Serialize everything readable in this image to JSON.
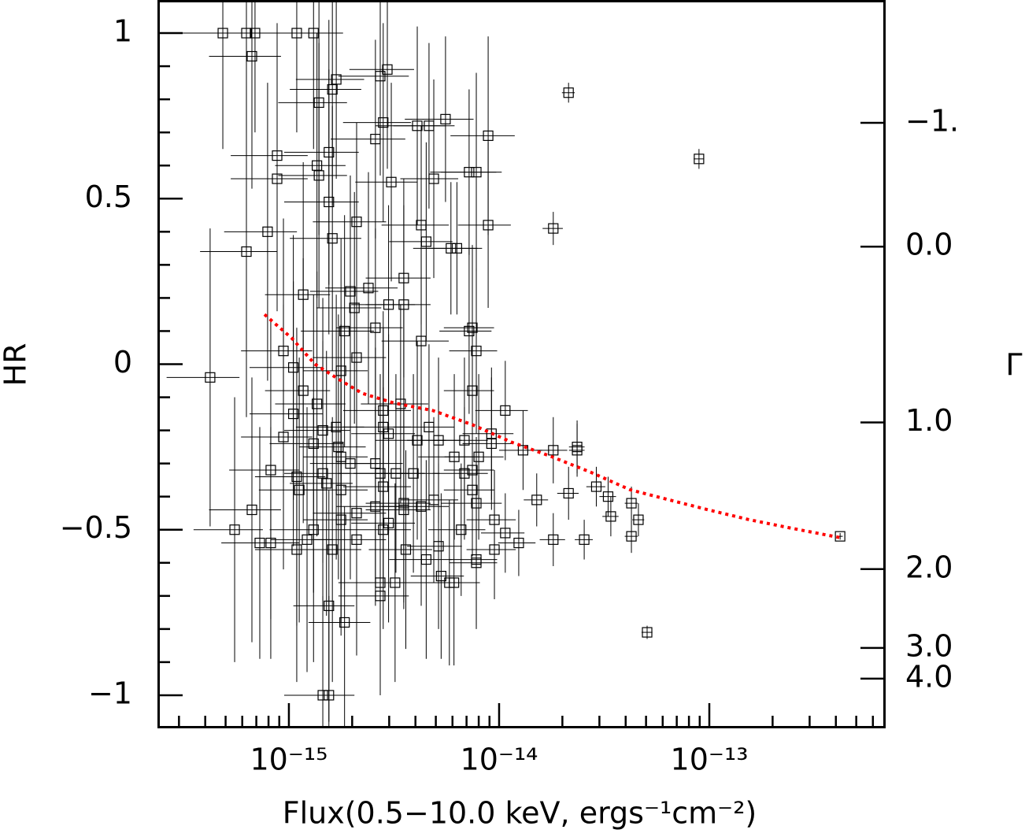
{
  "chart_data": {
    "type": "scatter",
    "x_label": "Flux(0.5−10.0 keV, ergs⁻¹cm⁻²)",
    "y_label": "HR",
    "y2_label": "Γ",
    "xscale": "log",
    "xlim": [
      2.37e-16,
      6.9e-13
    ],
    "xticks": [
      {
        "value": 1e-15,
        "label": "10⁻¹⁵"
      },
      {
        "value": 1e-14,
        "label": "10⁻¹⁴"
      },
      {
        "value": 1e-13,
        "label": "10⁻¹³"
      }
    ],
    "xminorticks": [
      3e-16,
      4e-16,
      5e-16,
      6e-16,
      7e-16,
      8e-16,
      9e-16,
      2e-15,
      3e-15,
      4e-15,
      5e-15,
      6e-15,
      7e-15,
      8e-15,
      9e-15,
      2e-14,
      3e-14,
      4e-14,
      5e-14,
      6e-14,
      7e-14,
      8e-14,
      9e-14,
      2e-13,
      3e-13,
      4e-13,
      5e-13,
      6e-13
    ],
    "ylim": [
      -1.1,
      1.1
    ],
    "yticks": [
      {
        "value": -1,
        "label": "−1"
      },
      {
        "value": -0.5,
        "label": "−0.5"
      },
      0,
      0.5,
      1
    ],
    "yminorticks": [
      -0.9,
      -0.8,
      -0.7,
      -0.6,
      -0.4,
      -0.3,
      -0.2,
      -0.1,
      0.1,
      0.2,
      0.3,
      0.4,
      0.6,
      0.7,
      0.8,
      0.9
    ],
    "y2ticks": [
      {
        "value": -1,
        "label": "−1.",
        "hr": 0.729
      },
      {
        "value": 0,
        "label": "0.0",
        "hr": 0.355
      },
      {
        "value": 1,
        "label": "1.0",
        "hr": -0.176
      },
      {
        "value": 2,
        "label": "2.0",
        "hr": -0.619
      },
      {
        "value": 3,
        "label": "3.0",
        "hr": -0.857
      },
      {
        "value": 4,
        "label": "4.0",
        "hr": -0.95
      }
    ],
    "series": [
      {
        "type": "scatter",
        "color": "#000000",
        "x": [
          4.85e-16,
          6.28e-16,
          6.9e-16,
          6.67e-16,
          1.09e-15,
          1.31e-15,
          1.39e-15,
          1.55e-15,
          1.61e-15,
          1.68e-15,
          2.72e-15,
          2.94e-15,
          2.81e-15,
          2.58e-15,
          4.08e-15,
          4.64e-15,
          5.56e-15,
          8.87e-15,
          2.14e-14,
          8.93e-14,
          8.79e-16,
          8.79e-16,
          1.36e-15,
          1.39e-15,
          1.55e-15,
          3.07e-15,
          4.89e-15,
          7.79e-15,
          7.2e-15,
          8.87e-15,
          1.81e-14,
          7.92e-16,
          6.28e-16,
          1.61e-15,
          2.1e-15,
          4.26e-15,
          4.5e-15,
          5.9e-15,
          6.3e-15,
          3.52e-15,
          2.39e-15,
          1.17e-15,
          1.96e-15,
          2.05e-15,
          2.98e-15,
          3.52e-15,
          2.58e-15,
          1.84e-15,
          7.2e-15,
          7.46e-15,
          7.79e-15,
          4.26e-15,
          9.42e-16,
          2.1e-15,
          4.22e-16,
          1.05e-15,
          1.77e-15,
          1.17e-15,
          1.36e-15,
          1.05e-15,
          7.46e-15,
          1.07e-14,
          2.81e-15,
          3.4e-15,
          9.42e-16,
          1.45e-15,
          1.68e-15,
          2.81e-15,
          2.98e-15,
          4.64e-15,
          4.08e-15,
          5.15e-15,
          6.84e-15,
          9.2e-15,
          9.2e-15,
          1.3e-14,
          1.81e-14,
          2.35e-14,
          2.35e-14,
          1.31e-15,
          1.72e-15,
          1.77e-15,
          1.96e-15,
          8.2e-16,
          1.09e-15,
          1.12e-15,
          1.45e-15,
          1.51e-15,
          1.77e-15,
          2.58e-15,
          2.72e-15,
          2.81e-15,
          3.23e-15,
          3.91e-15,
          6.12e-15,
          6.84e-15,
          7.46e-15,
          8e-15,
          7.46e-15,
          7.79e-15,
          3.52e-15,
          3.52e-15,
          4.26e-15,
          4.89e-15,
          1.51e-14,
          3.3e-14,
          2.14e-14,
          2.9e-14,
          4.26e-14,
          4.6e-14,
          3.4e-14,
          9.5e-15,
          1.07e-14,
          4.26e-14,
          1.24e-14,
          1.81e-14,
          2.54e-14,
          5.06e-14,
          4.19e-13,
          6.67e-16,
          5.52e-16,
          7.27e-16,
          8.2e-16,
          1.09e-15,
          1.22e-15,
          1.31e-15,
          1.61e-15,
          1.77e-15,
          2.1e-15,
          2.1e-15,
          2.58e-15,
          2.81e-15,
          2.98e-15,
          3.6e-15,
          4.5e-15,
          5.15e-15,
          5.3e-15,
          5.8e-15,
          6.1e-15,
          6.6e-15,
          7.79e-15,
          7.79e-15,
          9.5e-15,
          2.72e-15,
          3.2e-15,
          2.72e-15,
          1.55e-15,
          1.84e-15,
          1.45e-15,
          1.55e-15
        ],
        "values": [
          1,
          1,
          1,
          0.93,
          1,
          1,
          0.79,
          0.64,
          0.83,
          0.86,
          0.87,
          0.89,
          0.73,
          0.68,
          0.72,
          0.72,
          0.74,
          0.69,
          0.82,
          0.62,
          0.63,
          0.56,
          0.6,
          0.57,
          0.49,
          0.55,
          0.56,
          0.58,
          0.58,
          0.42,
          0.41,
          0.4,
          0.34,
          0.38,
          0.43,
          0.42,
          0.37,
          0.35,
          0.35,
          0.26,
          0.23,
          0.21,
          0.22,
          0.17,
          0.18,
          0.18,
          0.11,
          0.1,
          0.1,
          0.11,
          0.04,
          0.07,
          0.04,
          0.02,
          -0.04,
          -0.01,
          -0.02,
          -0.08,
          -0.12,
          -0.15,
          -0.08,
          -0.14,
          -0.14,
          -0.12,
          -0.22,
          -0.2,
          -0.19,
          -0.19,
          -0.21,
          -0.19,
          -0.23,
          -0.23,
          -0.23,
          -0.21,
          -0.24,
          -0.26,
          -0.26,
          -0.25,
          -0.26,
          -0.24,
          -0.25,
          -0.28,
          -0.3,
          -0.32,
          -0.34,
          -0.38,
          -0.33,
          -0.36,
          -0.38,
          -0.3,
          -0.33,
          -0.37,
          -0.33,
          -0.33,
          -0.28,
          -0.33,
          -0.32,
          -0.28,
          -0.38,
          -0.42,
          -0.42,
          -0.44,
          -0.43,
          -0.41,
          -0.41,
          -0.4,
          -0.39,
          -0.37,
          -0.42,
          -0.47,
          -0.46,
          -0.47,
          -0.51,
          -0.52,
          -0.54,
          -0.53,
          -0.53,
          -0.81,
          -0.52,
          -0.44,
          -0.5,
          -0.54,
          -0.54,
          -0.56,
          -0.53,
          -0.5,
          -0.56,
          -0.47,
          -0.45,
          -0.53,
          -0.43,
          -0.5,
          -0.48,
          -0.56,
          -0.59,
          -0.55,
          -0.64,
          -0.66,
          -0.66,
          -0.5,
          -0.59,
          -0.6,
          -0.56,
          -0.66,
          -0.66,
          -0.7,
          -0.73,
          -0.78,
          -1,
          -1
        ],
        "xerr": [
          2e-16,
          2.5e-16,
          2.5e-16,
          2.5e-16,
          4e-16,
          5e-16,
          5e-16,
          6e-16,
          6e-16,
          6e-16,
          1e-15,
          1e-15,
          1e-15,
          1e-15,
          1.5e-15,
          1.5e-15,
          2e-15,
          3e-15,
          1.5e-15,
          5e-15,
          3.5e-16,
          3.5e-16,
          5e-16,
          5e-16,
          6e-16,
          1e-15,
          1.5e-15,
          2.5e-15,
          2.5e-15,
          2.5e-15,
          2e-15,
          3e-16,
          2.5e-16,
          6e-16,
          8e-16,
          1.5e-15,
          1.5e-15,
          2e-15,
          2e-15,
          1.2e-15,
          9e-16,
          4e-16,
          7e-16,
          7e-16,
          1e-15,
          1.2e-15,
          9e-16,
          7e-16,
          2e-15,
          2e-15,
          2e-15,
          1.5e-15,
          3.5e-16,
          8e-16,
          1.6e-16,
          4e-16,
          6e-16,
          4e-16,
          5e-16,
          4e-16,
          2e-15,
          3e-15,
          1e-15,
          1.2e-15,
          3.5e-16,
          5e-16,
          6e-16,
          1e-15,
          1e-15,
          1.5e-15,
          1.5e-15,
          1.5e-15,
          2e-15,
          2.5e-15,
          2.5e-15,
          3e-15,
          3e-15,
          2e-15,
          2e-15,
          5e-16,
          6e-16,
          6e-16,
          7e-16,
          3e-16,
          4e-16,
          4e-16,
          5e-16,
          5e-16,
          6e-16,
          9e-16,
          1e-15,
          1e-15,
          1.2e-15,
          1.3e-15,
          2e-15,
          2e-15,
          2e-15,
          2.5e-15,
          2e-15,
          2.5e-15,
          1.2e-15,
          1.2e-15,
          1.5e-15,
          1.5e-15,
          2e-15,
          3e-15,
          2.5e-15,
          3e-15,
          3e-15,
          3e-15,
          3e-15,
          2.5e-15,
          2.5e-15,
          3e-15,
          2.5e-15,
          2.5e-15,
          2.5e-15,
          3e-15,
          1.2e-14,
          2.5e-16,
          2e-16,
          2.5e-16,
          3e-16,
          4e-16,
          4e-16,
          5e-16,
          6e-16,
          6e-16,
          8e-16,
          8e-16,
          9e-16,
          1e-15,
          1e-15,
          1.2e-15,
          1.5e-15,
          1.5e-15,
          1.5e-15,
          2e-15,
          2e-15,
          2e-15,
          2e-15,
          2e-15,
          2.5e-15,
          1e-15,
          1e-15,
          1e-15,
          5e-16,
          6e-16,
          5e-16,
          5e-16
        ],
        "yerr": [
          0.35,
          0.3,
          0.3,
          0.4,
          0.3,
          0.35,
          0.4,
          0.4,
          0.35,
          0.3,
          0.3,
          0.3,
          0.3,
          0.3,
          0.3,
          0.25,
          0.25,
          0.3,
          0.03,
          0.03,
          0.4,
          0.4,
          0.4,
          0.4,
          0.4,
          0.3,
          0.3,
          0.3,
          0.25,
          0.25,
          0.05,
          0.45,
          0.5,
          0.4,
          0.3,
          0.3,
          0.3,
          0.2,
          0.2,
          0.3,
          0.35,
          0.4,
          0.35,
          0.35,
          0.3,
          0.3,
          0.3,
          0.35,
          0.25,
          0.25,
          0.25,
          0.3,
          0.4,
          0.35,
          0.45,
          0.4,
          0.4,
          0.4,
          0.4,
          0.4,
          0.2,
          0.15,
          0.3,
          0.3,
          0.4,
          0.4,
          0.4,
          0.3,
          0.3,
          0.25,
          0.3,
          0.25,
          0.25,
          0.2,
          0.2,
          0.12,
          0.1,
          0.08,
          0.08,
          0.45,
          0.4,
          0.4,
          0.35,
          0.45,
          0.45,
          0.4,
          0.4,
          0.4,
          0.4,
          0.35,
          0.3,
          0.3,
          0.3,
          0.3,
          0.25,
          0.2,
          0.25,
          0.25,
          0.2,
          0.2,
          0.3,
          0.3,
          0.3,
          0.25,
          0.08,
          0.06,
          0.08,
          0.06,
          0.05,
          0.05,
          0.06,
          0.15,
          0.12,
          0.05,
          0.1,
          0.08,
          0.06,
          0.02,
          0.01,
          0.4,
          0.4,
          0.35,
          0.35,
          0.4,
          0.4,
          0.4,
          0.4,
          0.35,
          0.35,
          0.35,
          0.3,
          0.3,
          0.3,
          0.3,
          0.3,
          0.25,
          0.25,
          0.25,
          0.25,
          0.2,
          0.2,
          0.2,
          0.15,
          0.3,
          0.3,
          0.3,
          0.35,
          0.35,
          0.3,
          0.3
        ]
      },
      {
        "type": "line",
        "color": "#ff0000",
        "dashed": true,
        "x": [
          7.66e-16,
          1.03e-15,
          1.33e-15,
          1.72e-15,
          2.23e-15,
          3.15e-15,
          4.84e-15,
          7.46e-15,
          1.15e-14,
          1.77e-14,
          2.72e-14,
          4.19e-14,
          6.45e-14,
          9.9e-14,
          1.53e-13,
          2.35e-13,
          4.19e-13
        ],
        "values": [
          0.15,
          0.079,
          0,
          -0.045,
          -0.088,
          -0.117,
          -0.14,
          -0.183,
          -0.236,
          -0.279,
          -0.326,
          -0.379,
          -0.41,
          -0.44,
          -0.469,
          -0.493,
          -0.524
        ]
      }
    ]
  }
}
